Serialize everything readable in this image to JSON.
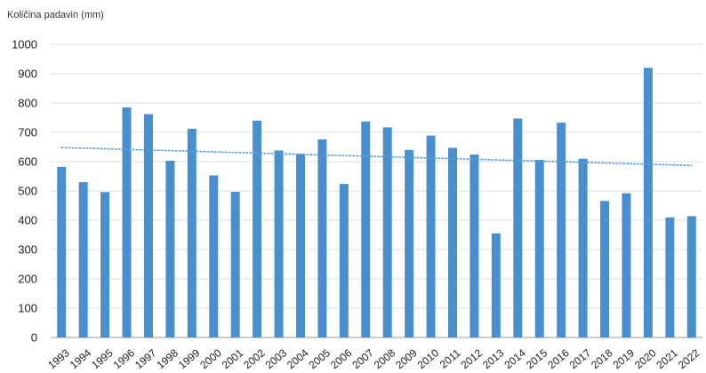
{
  "chart_data": {
    "type": "bar",
    "title": "",
    "xlabel": "",
    "ylabel": "Količina padavin (mm)",
    "ylim": [
      0,
      1000
    ],
    "yticks": [
      0,
      100,
      200,
      300,
      400,
      500,
      600,
      700,
      800,
      900,
      1000
    ],
    "grid": true,
    "legend": "none",
    "categories": [
      "1993",
      "1994",
      "1995",
      "1996",
      "1997",
      "1998",
      "1999",
      "2000",
      "2001",
      "2002",
      "2003",
      "2004",
      "2005",
      "2006",
      "2007",
      "2008",
      "2009",
      "2010",
      "2011",
      "2012",
      "2013",
      "2014",
      "2015",
      "2016",
      "2017",
      "2018",
      "2019",
      "2020",
      "2021",
      "2022"
    ],
    "series": [
      {
        "values": [
          582,
          530,
          496,
          785,
          762,
          603,
          712,
          553,
          497,
          740,
          638,
          626,
          676,
          524,
          737,
          717,
          640,
          689,
          647,
          624,
          355,
          747,
          606,
          733,
          610,
          466,
          492,
          920,
          410,
          414
        ],
        "color": "#4a8fcd"
      }
    ],
    "trendline": {
      "type": "linear",
      "start": 648,
      "end": 587,
      "color": "#5b9bd5",
      "style": "dotted"
    }
  }
}
